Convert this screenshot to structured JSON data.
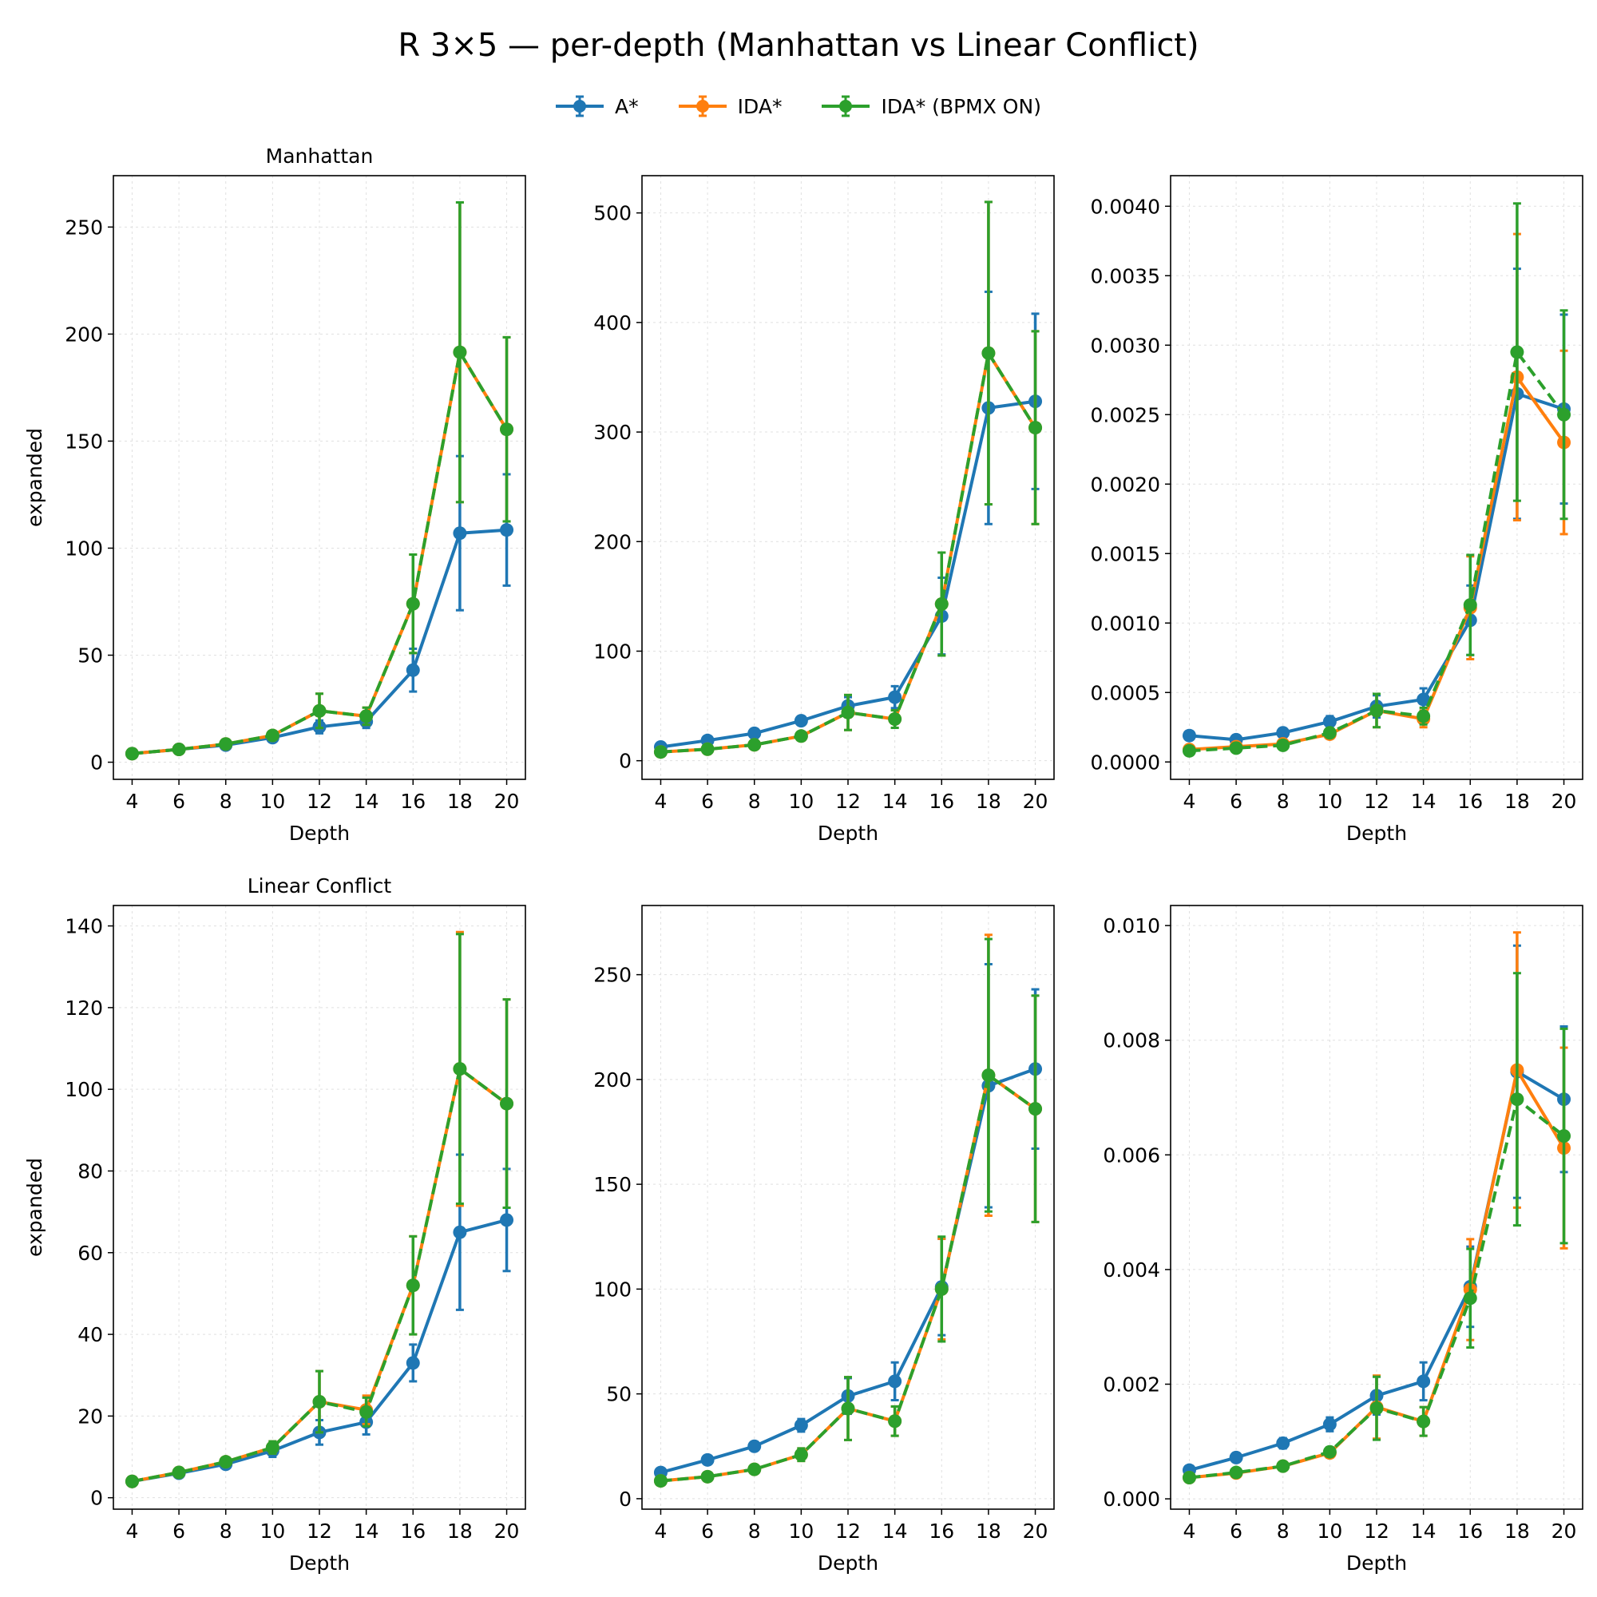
{
  "title": "R 3×5 — per-depth (Manhattan vs Linear Conflict)",
  "colors": {
    "astar": "#1f77b4",
    "ida": "#ff7f0e",
    "bpmx": "#2ca02c"
  },
  "legend": [
    {
      "label": "A*",
      "color": "#1f77b4",
      "dashed": false
    },
    {
      "label": "IDA*",
      "color": "#ff7f0e",
      "dashed": false
    },
    {
      "label": "IDA* (BPMX ON)",
      "color": "#2ca02c",
      "dashed": true
    }
  ],
  "chart_data": [
    {
      "type": "line",
      "row": 0,
      "col": 0,
      "title": "Manhattan",
      "xlabel": "Depth",
      "ylabel": "expanded",
      "x": [
        4,
        6,
        8,
        10,
        12,
        14,
        16,
        18,
        20
      ],
      "xlim": [
        3.2,
        20.8
      ],
      "ylim": [
        -8,
        274
      ],
      "yticks": [
        0,
        50,
        100,
        150,
        200,
        250
      ],
      "ytick_labels": [
        "0",
        "50",
        "100",
        "150",
        "200",
        "250"
      ],
      "grid": true,
      "series": [
        {
          "name": "A*",
          "color": "#1f77b4",
          "dashed": false,
          "values": [
            4,
            6,
            8,
            11.5,
            16.5,
            19,
            43,
            107,
            108.5
          ],
          "err": [
            0.5,
            0.8,
            1,
            1.5,
            3,
            3,
            10,
            36,
            26
          ]
        },
        {
          "name": "IDA*",
          "color": "#ff7f0e",
          "dashed": false,
          "values": [
            4,
            6,
            8.5,
            12.5,
            24,
            21.5,
            74,
            191.5,
            155.5
          ],
          "err": [
            0.5,
            0.8,
            1,
            2,
            8,
            4,
            23,
            70,
            43
          ]
        },
        {
          "name": "IDA* (BPMX ON)",
          "color": "#2ca02c",
          "dashed": true,
          "values": [
            4,
            6,
            8.5,
            12.5,
            24,
            21.5,
            74,
            191.5,
            155.5
          ],
          "err": [
            0.5,
            0.8,
            1,
            2,
            8,
            4,
            23,
            70,
            43
          ]
        }
      ]
    },
    {
      "type": "line",
      "row": 0,
      "col": 1,
      "title": "",
      "xlabel": "Depth",
      "ylabel": "",
      "x": [
        4,
        6,
        8,
        10,
        12,
        14,
        16,
        18,
        20
      ],
      "xlim": [
        3.2,
        20.8
      ],
      "ylim": [
        -17,
        534
      ],
      "yticks": [
        0,
        100,
        200,
        300,
        400,
        500
      ],
      "ytick_labels": [
        "0",
        "100",
        "200",
        "300",
        "400",
        "500"
      ],
      "grid": true,
      "series": [
        {
          "name": "A*",
          "color": "#1f77b4",
          "dashed": false,
          "values": [
            12.5,
            18.5,
            25,
            36.5,
            50,
            58,
            132,
            322,
            328
          ],
          "err": [
            1,
            2,
            3,
            4,
            8,
            10,
            35,
            106,
            80
          ]
        },
        {
          "name": "IDA*",
          "color": "#ff7f0e",
          "dashed": false,
          "values": [
            8,
            10.5,
            14.5,
            22.5,
            44,
            38,
            143,
            372,
            304
          ],
          "err": [
            1,
            1.5,
            2,
            3,
            16,
            8,
            47,
            138,
            88
          ]
        },
        {
          "name": "IDA* (BPMX ON)",
          "color": "#2ca02c",
          "dashed": true,
          "values": [
            8,
            10.5,
            14.5,
            22.5,
            44,
            38,
            143,
            372,
            304
          ],
          "err": [
            1,
            1.5,
            2,
            3,
            16,
            8,
            47,
            138,
            88
          ]
        }
      ]
    },
    {
      "type": "line",
      "row": 0,
      "col": 2,
      "title": "",
      "xlabel": "Depth",
      "ylabel": "",
      "x": [
        4,
        6,
        8,
        10,
        12,
        14,
        16,
        18,
        20
      ],
      "xlim": [
        3.2,
        20.8
      ],
      "ylim": [
        -0.000125,
        0.00422
      ],
      "yticks": [
        0,
        0.0005,
        0.001,
        0.0015,
        0.002,
        0.0025,
        0.003,
        0.0035,
        0.004
      ],
      "ytick_labels": [
        "0.0000",
        "0.0005",
        "0.0010",
        "0.0015",
        "0.0020",
        "0.0025",
        "0.0030",
        "0.0035",
        "0.0040"
      ],
      "grid": true,
      "series": [
        {
          "name": "A*",
          "color": "#1f77b4",
          "dashed": false,
          "values": [
            0.00019,
            0.00016,
            0.00021,
            0.00029,
            0.0004,
            0.00045,
            0.00102,
            0.00265,
            0.00254
          ],
          "err": [
            3e-05,
            2e-05,
            3e-05,
            4e-05,
            8e-05,
            8e-05,
            0.00025,
            0.0009,
            0.00068
          ]
        },
        {
          "name": "IDA*",
          "color": "#ff7f0e",
          "dashed": false,
          "values": [
            9e-05,
            0.00011,
            0.00013,
            0.0002,
            0.00037,
            0.00031,
            0.00111,
            0.00277,
            0.0023
          ],
          "err": [
            2e-05,
            2e-05,
            2e-05,
            3e-05,
            0.00012,
            6e-05,
            0.00037,
            0.00103,
            0.00066
          ]
        },
        {
          "name": "IDA* (BPMX ON)",
          "color": "#2ca02c",
          "dashed": true,
          "values": [
            8e-05,
            0.0001,
            0.00012,
            0.00021,
            0.00037,
            0.00033,
            0.00113,
            0.00295,
            0.0025
          ],
          "err": [
            2e-05,
            2e-05,
            2e-05,
            3e-05,
            0.00012,
            6e-05,
            0.00036,
            0.00107,
            0.00075
          ]
        }
      ]
    },
    {
      "type": "line",
      "row": 1,
      "col": 0,
      "title": "Linear Conflict",
      "xlabel": "Depth",
      "ylabel": "expanded",
      "x": [
        4,
        6,
        8,
        10,
        12,
        14,
        16,
        18,
        20
      ],
      "xlim": [
        3.2,
        20.8
      ],
      "ylim": [
        -2.8,
        145
      ],
      "yticks": [
        0,
        20,
        40,
        60,
        80,
        100,
        120,
        140
      ],
      "ytick_labels": [
        "0",
        "20",
        "40",
        "60",
        "80",
        "100",
        "120",
        "140"
      ],
      "grid": true,
      "series": [
        {
          "name": "A*",
          "color": "#1f77b4",
          "dashed": false,
          "values": [
            4,
            6,
            8.2,
            11.5,
            16,
            18.5,
            33,
            65,
            68
          ],
          "err": [
            0.5,
            0.8,
            1,
            1.5,
            3,
            3,
            4.5,
            19,
            12.5
          ]
        },
        {
          "name": "IDA*",
          "color": "#ff7f0e",
          "dashed": false,
          "values": [
            4,
            6.2,
            8.8,
            12.3,
            23.5,
            21.5,
            52,
            105,
            96.5
          ],
          "err": [
            0.5,
            0.8,
            1,
            1.5,
            7.5,
            3.5,
            12,
            33.5,
            25.5
          ]
        },
        {
          "name": "IDA* (BPMX ON)",
          "color": "#2ca02c",
          "dashed": true,
          "values": [
            4,
            6.2,
            8.8,
            12.3,
            23.5,
            21,
            52,
            105,
            96.5
          ],
          "err": [
            0.5,
            0.8,
            1,
            1.5,
            7.5,
            3.5,
            12,
            33,
            25.5
          ]
        }
      ]
    },
    {
      "type": "line",
      "row": 1,
      "col": 1,
      "title": "",
      "xlabel": "Depth",
      "ylabel": "",
      "x": [
        4,
        6,
        8,
        10,
        12,
        14,
        16,
        18,
        20
      ],
      "xlim": [
        3.2,
        20.8
      ],
      "ylim": [
        -5,
        283
      ],
      "yticks": [
        0,
        50,
        100,
        150,
        200,
        250
      ],
      "ytick_labels": [
        "0",
        "50",
        "100",
        "150",
        "200",
        "250"
      ],
      "grid": true,
      "series": [
        {
          "name": "A*",
          "color": "#1f77b4",
          "dashed": false,
          "values": [
            12.5,
            18.5,
            25,
            35,
            49,
            56,
            101,
            197,
            205
          ],
          "err": [
            1,
            1.5,
            2,
            3,
            8.5,
            9,
            23,
            58,
            38
          ]
        },
        {
          "name": "IDA*",
          "color": "#ff7f0e",
          "dashed": false,
          "values": [
            8.5,
            10.5,
            14,
            21,
            43,
            37,
            100,
            202,
            186
          ],
          "err": [
            1,
            1.5,
            2,
            3,
            15,
            7,
            24,
            67,
            54
          ]
        },
        {
          "name": "IDA* (BPMX ON)",
          "color": "#2ca02c",
          "dashed": true,
          "values": [
            8.5,
            10.5,
            14,
            21,
            43,
            37,
            100,
            202,
            186
          ],
          "err": [
            1,
            1.5,
            2,
            3,
            15,
            7,
            25,
            65,
            54
          ]
        }
      ]
    },
    {
      "type": "line",
      "row": 1,
      "col": 2,
      "title": "",
      "xlabel": "Depth",
      "ylabel": "",
      "x": [
        4,
        6,
        8,
        10,
        12,
        14,
        16,
        18,
        20
      ],
      "xlim": [
        3.2,
        20.8
      ],
      "ylim": [
        -0.00018,
        0.01035
      ],
      "yticks": [
        0,
        0.002,
        0.004,
        0.006,
        0.008,
        0.01
      ],
      "ytick_labels": [
        "0.000",
        "0.002",
        "0.004",
        "0.006",
        "0.008",
        "0.010"
      ],
      "grid": true,
      "series": [
        {
          "name": "A*",
          "color": "#1f77b4",
          "dashed": false,
          "values": [
            0.0005,
            0.00072,
            0.00097,
            0.0013,
            0.0018,
            0.00205,
            0.0037,
            0.00745,
            0.00697
          ],
          "err": [
            5e-05,
            7e-05,
            9e-05,
            0.00012,
            0.00033,
            0.00033,
            0.0007,
            0.0022,
            0.00127
          ]
        },
        {
          "name": "IDA*",
          "color": "#ff7f0e",
          "dashed": false,
          "values": [
            0.00037,
            0.00045,
            0.00057,
            0.0008,
            0.0016,
            0.00135,
            0.00365,
            0.00748,
            0.00612
          ],
          "err": [
            4e-05,
            5e-05,
            6e-05,
            8e-05,
            0.00055,
            0.00025,
            0.00088,
            0.0024,
            0.00175
          ]
        },
        {
          "name": "IDA* (BPMX ON)",
          "color": "#2ca02c",
          "dashed": true,
          "values": [
            0.00037,
            0.00046,
            0.00057,
            0.00082,
            0.00158,
            0.00135,
            0.0035,
            0.00697,
            0.00633
          ],
          "err": [
            4e-05,
            5e-05,
            6e-05,
            8e-05,
            0.00055,
            0.00025,
            0.00086,
            0.0022,
            0.00187
          ]
        }
      ]
    }
  ]
}
